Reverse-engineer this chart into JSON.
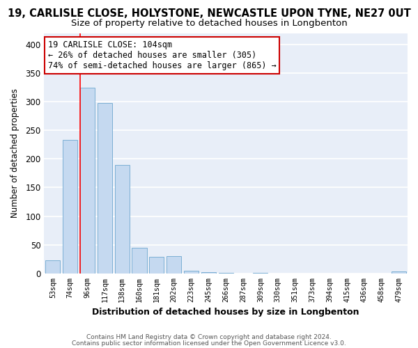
{
  "title": "19, CARLISLE CLOSE, HOLYSTONE, NEWCASTLE UPON TYNE, NE27 0UT",
  "subtitle": "Size of property relative to detached houses in Longbenton",
  "xlabel": "Distribution of detached houses by size in Longbenton",
  "ylabel": "Number of detached properties",
  "bar_labels": [
    "53sqm",
    "74sqm",
    "96sqm",
    "117sqm",
    "138sqm",
    "160sqm",
    "181sqm",
    "202sqm",
    "223sqm",
    "245sqm",
    "266sqm",
    "287sqm",
    "309sqm",
    "330sqm",
    "351sqm",
    "373sqm",
    "394sqm",
    "415sqm",
    "436sqm",
    "458sqm",
    "479sqm"
  ],
  "bar_values": [
    23,
    233,
    325,
    298,
    190,
    45,
    29,
    30,
    5,
    2,
    1,
    0,
    1,
    0,
    0,
    0,
    0,
    0,
    0,
    0,
    3
  ],
  "bar_color": "#c5d9f0",
  "bar_edge_color": "#7bafd4",
  "red_line_index": 2,
  "ylim": [
    0,
    420
  ],
  "yticks": [
    0,
    50,
    100,
    150,
    200,
    250,
    300,
    350,
    400
  ],
  "annotation_title": "19 CARLISLE CLOSE: 104sqm",
  "annotation_line1": "← 26% of detached houses are smaller (305)",
  "annotation_line2": "74% of semi-detached houses are larger (865) →",
  "annotation_box_color": "#ffffff",
  "annotation_box_edge": "#cc0000",
  "footer1": "Contains HM Land Registry data © Crown copyright and database right 2024.",
  "footer2": "Contains public sector information licensed under the Open Government Licence v3.0.",
  "title_fontsize": 10.5,
  "subtitle_fontsize": 9.5,
  "axis_bg_color": "#e8eef8",
  "fig_bg_color": "#ffffff",
  "grid_color": "#ffffff"
}
